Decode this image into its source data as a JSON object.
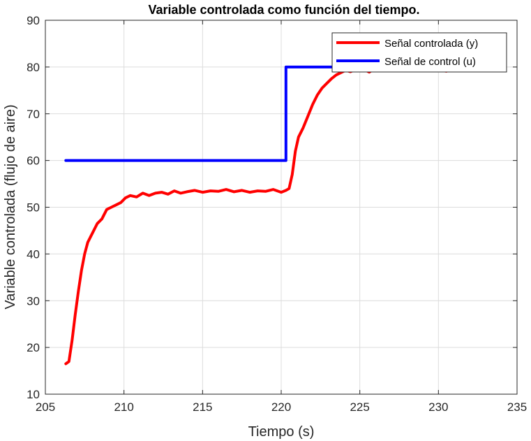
{
  "chart_data": {
    "type": "line",
    "title": "Variable controlada como función del tiempo.",
    "xlabel": "Tiempo (s)",
    "ylabel": "Variable controlada (flujo de aire)",
    "xlim": [
      205,
      235
    ],
    "ylim": [
      10,
      90
    ],
    "xticks": [
      205,
      210,
      215,
      220,
      225,
      230,
      235
    ],
    "yticks": [
      10,
      20,
      30,
      40,
      50,
      60,
      70,
      80,
      90
    ],
    "grid": true,
    "legend_position": "top-right",
    "series": [
      {
        "name": "Señal controlada (y)",
        "color": "#ff0000",
        "x": [
          206.3,
          206.5,
          206.7,
          206.9,
          207.1,
          207.3,
          207.5,
          207.7,
          208.0,
          208.3,
          208.6,
          208.9,
          209.2,
          209.5,
          209.8,
          210.1,
          210.4,
          210.8,
          211.2,
          211.6,
          212.0,
          212.4,
          212.8,
          213.2,
          213.6,
          214.0,
          214.5,
          215.0,
          215.5,
          216.0,
          216.5,
          217.0,
          217.5,
          218.0,
          218.5,
          219.0,
          219.5,
          220.0,
          220.3,
          220.5,
          220.7,
          220.9,
          221.1,
          221.4,
          221.7,
          222.0,
          222.3,
          222.6,
          222.9,
          223.2,
          223.5,
          223.8,
          224.1,
          224.4,
          224.8,
          225.2,
          225.6,
          226.0,
          226.4,
          226.8,
          227.2,
          227.6,
          228.0,
          228.4,
          228.8,
          229.2,
          229.6,
          230.0,
          230.5
        ],
        "values": [
          16.5,
          17.0,
          21.5,
          27.0,
          32.0,
          36.5,
          40.0,
          42.5,
          44.5,
          46.5,
          47.5,
          49.5,
          50.0,
          50.5,
          51.0,
          52.0,
          52.5,
          52.2,
          53.0,
          52.5,
          53.0,
          53.2,
          52.8,
          53.5,
          53.0,
          53.3,
          53.6,
          53.2,
          53.5,
          53.4,
          53.8,
          53.3,
          53.6,
          53.2,
          53.5,
          53.4,
          53.8,
          53.2,
          53.6,
          54.0,
          57.0,
          62.0,
          65.0,
          67.0,
          69.5,
          72.0,
          74.0,
          75.5,
          76.5,
          77.5,
          78.3,
          78.8,
          79.3,
          79.0,
          79.5,
          79.6,
          78.9,
          79.8,
          79.4,
          79.6,
          80.2,
          79.3,
          79.8,
          79.5,
          80.1,
          79.6,
          79.9,
          79.4,
          79.1
        ]
      },
      {
        "name": "Señal de control (u)",
        "color": "#0000ff",
        "x": [
          206.3,
          220.3,
          220.3,
          230.5
        ],
        "values": [
          60,
          60,
          80,
          80
        ]
      }
    ]
  }
}
